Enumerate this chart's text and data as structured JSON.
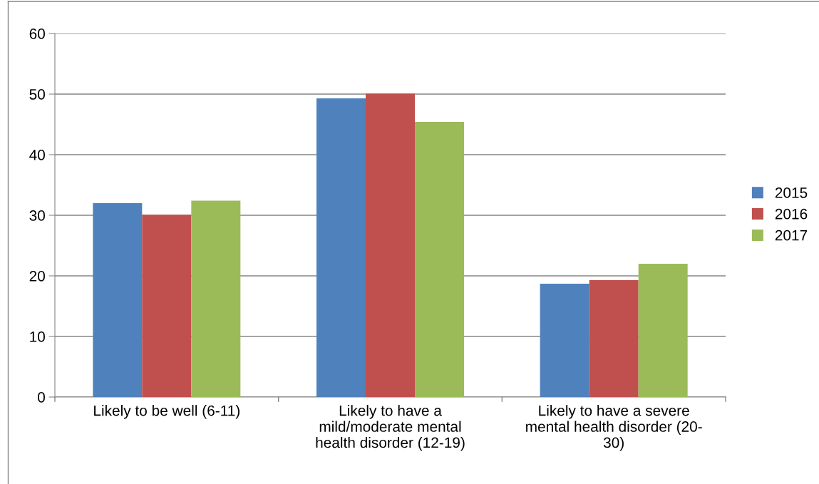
{
  "chart_data": {
    "type": "bar",
    "categories": [
      "Likely to be well (6-11)",
      "Likely to have a\nmild/moderate mental\nhealth disorder (12-19)",
      "Likely to have a severe\nmental health disorder (20-\n30)"
    ],
    "series": [
      {
        "name": "2015",
        "color": "#4f81bd",
        "values": [
          32,
          49.3,
          18.7
        ]
      },
      {
        "name": "2016",
        "color": "#c0504d",
        "values": [
          30.1,
          50.1,
          19.3
        ]
      },
      {
        "name": "2017",
        "color": "#9bbb59",
        "values": [
          32.4,
          45.4,
          22.0
        ]
      }
    ],
    "ylim": [
      0,
      60
    ],
    "yticks": [
      0,
      10,
      20,
      30,
      40,
      50,
      60
    ],
    "grid": "y",
    "legend": "right"
  }
}
